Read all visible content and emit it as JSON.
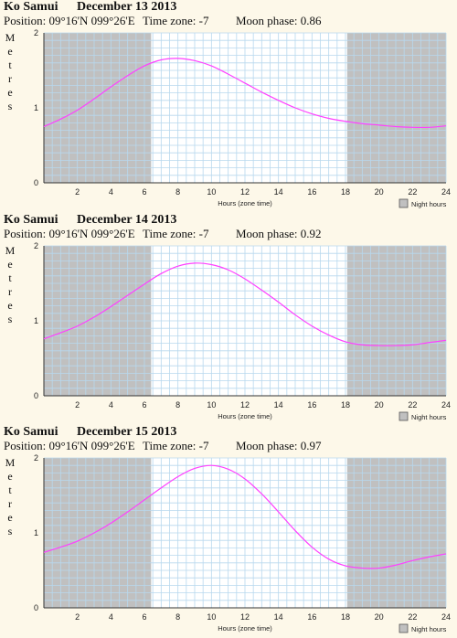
{
  "colors": {
    "background": "#fdf8e9",
    "night": "#c0c0c0",
    "grid": "#b8d8ee",
    "curve": "#ff40ff"
  },
  "panels": [
    {
      "location": "Ko Samui",
      "date": "December 13 2013",
      "position": "Position: 09°16'N 099°26'E",
      "timezone": "Time zone: -7",
      "moon": "Moon phase: 0.86"
    },
    {
      "location": "Ko Samui",
      "date": "December 14 2013",
      "position": "Position: 09°16'N 099°26'E",
      "timezone": "Time zone: -7",
      "moon": "Moon phase: 0.92"
    },
    {
      "location": "Ko Samui",
      "date": "December 15 2013",
      "position": "Position: 09°16'N 099°26'E",
      "timezone": "Time zone: -7",
      "moon": "Moon phase: 0.97"
    }
  ],
  "chart_data": [
    {
      "type": "line",
      "ylabel": "Metres",
      "xlabel": "Hours (zone time)",
      "legend": "Night hours",
      "xlim": [
        0,
        24
      ],
      "ylim": [
        0,
        2
      ],
      "xticks": [
        "2",
        "4",
        "6",
        "8",
        "10",
        "12",
        "14",
        "16",
        "18",
        "20",
        "22",
        "24"
      ],
      "yticks": [
        "0",
        "1",
        "2"
      ],
      "night_periods": [
        [
          0,
          6.4
        ],
        [
          18.1,
          24
        ]
      ],
      "x": [
        0,
        1,
        2,
        3,
        4,
        5,
        6,
        7,
        8,
        9,
        10,
        11,
        12,
        13,
        14,
        15,
        16,
        17,
        18,
        19,
        20,
        21,
        22,
        23,
        24
      ],
      "y": [
        0.75,
        0.85,
        0.97,
        1.12,
        1.28,
        1.43,
        1.56,
        1.64,
        1.66,
        1.63,
        1.56,
        1.45,
        1.33,
        1.21,
        1.1,
        1.0,
        0.92,
        0.86,
        0.82,
        0.79,
        0.77,
        0.75,
        0.74,
        0.74,
        0.76
      ]
    },
    {
      "type": "line",
      "ylabel": "Metres",
      "xlabel": "Hours (zone time)",
      "legend": "Night hours",
      "xlim": [
        0,
        24
      ],
      "ylim": [
        0,
        2
      ],
      "xticks": [
        "2",
        "4",
        "6",
        "8",
        "10",
        "12",
        "14",
        "16",
        "18",
        "20",
        "22",
        "24"
      ],
      "yticks": [
        "0",
        "1",
        "2"
      ],
      "night_periods": [
        [
          0,
          6.4
        ],
        [
          18.1,
          24
        ]
      ],
      "x": [
        0,
        1,
        2,
        3,
        4,
        5,
        6,
        7,
        8,
        9,
        10,
        11,
        12,
        13,
        14,
        15,
        16,
        17,
        18,
        19,
        20,
        21,
        22,
        23,
        24
      ],
      "y": [
        0.76,
        0.84,
        0.93,
        1.05,
        1.19,
        1.34,
        1.49,
        1.63,
        1.73,
        1.77,
        1.75,
        1.68,
        1.56,
        1.41,
        1.25,
        1.08,
        0.93,
        0.81,
        0.72,
        0.68,
        0.67,
        0.67,
        0.68,
        0.71,
        0.74
      ]
    },
    {
      "type": "line",
      "ylabel": "Metres",
      "xlabel": "Hours (zone time)",
      "legend": "Night hours",
      "xlim": [
        0,
        24
      ],
      "ylim": [
        0,
        2
      ],
      "xticks": [
        "2",
        "4",
        "6",
        "8",
        "10",
        "12",
        "14",
        "16",
        "18",
        "20",
        "22",
        "24"
      ],
      "yticks": [
        "0",
        "1",
        "2"
      ],
      "night_periods": [
        [
          0,
          6.4
        ],
        [
          18.1,
          24
        ]
      ],
      "x": [
        0,
        1,
        2,
        3,
        4,
        5,
        6,
        7,
        8,
        9,
        10,
        11,
        12,
        13,
        14,
        15,
        16,
        17,
        18,
        19,
        20,
        21,
        22,
        23,
        24
      ],
      "y": [
        0.74,
        0.81,
        0.89,
        1.0,
        1.13,
        1.28,
        1.44,
        1.6,
        1.75,
        1.86,
        1.9,
        1.85,
        1.72,
        1.52,
        1.28,
        1.03,
        0.81,
        0.65,
        0.56,
        0.53,
        0.53,
        0.57,
        0.63,
        0.68,
        0.72
      ]
    }
  ]
}
